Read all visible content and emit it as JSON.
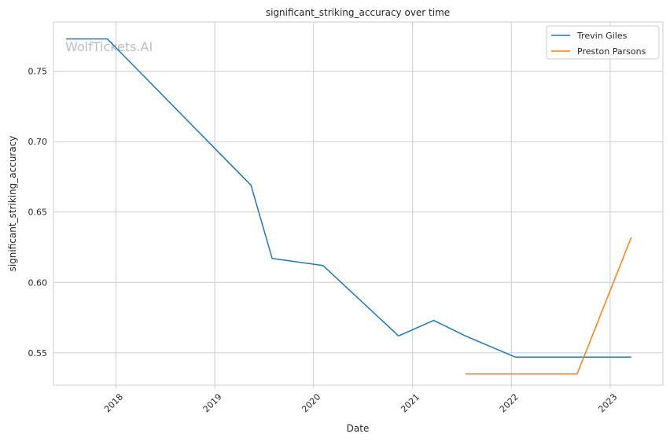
{
  "chart_data": {
    "type": "line",
    "title": "significant_striking_accuracy over time",
    "xlabel": "Date",
    "ylabel": "significant_striking_accuracy",
    "watermark": "WolfTickets.AI",
    "grid": true,
    "legend_position": "top-right",
    "xlim": [
      "2017-05-15",
      "2023-07-15"
    ],
    "ylim": [
      0.527,
      0.785
    ],
    "x_ticks": [
      "2018-01-01",
      "2019-01-01",
      "2020-01-01",
      "2021-01-01",
      "2022-01-01",
      "2023-01-01"
    ],
    "x_tick_labels": [
      "2018",
      "2019",
      "2020",
      "2021",
      "2022",
      "2023"
    ],
    "y_ticks": [
      0.55,
      0.6,
      0.65,
      0.7,
      0.75
    ],
    "y_tick_labels": [
      "0.55",
      "0.60",
      "0.65",
      "0.70",
      "0.75"
    ],
    "series": [
      {
        "name": "Trevin Giles",
        "color": "#1f77b4",
        "x": [
          "2017-07-01",
          "2017-11-30",
          "2019-05-15",
          "2019-08-01",
          "2020-02-05",
          "2020-11-10",
          "2021-03-20",
          "2021-07-15",
          "2022-01-15",
          "2022-09-01",
          "2023-03-20"
        ],
        "y": [
          0.773,
          0.773,
          0.669,
          0.617,
          0.612,
          0.562,
          0.573,
          0.562,
          0.547,
          0.547,
          0.547
        ]
      },
      {
        "name": "Preston Parsons",
        "color": "#ff7f0e",
        "x": [
          "2021-07-15",
          "2022-09-01",
          "2023-03-20"
        ],
        "y": [
          0.535,
          0.535,
          0.632
        ]
      }
    ]
  }
}
